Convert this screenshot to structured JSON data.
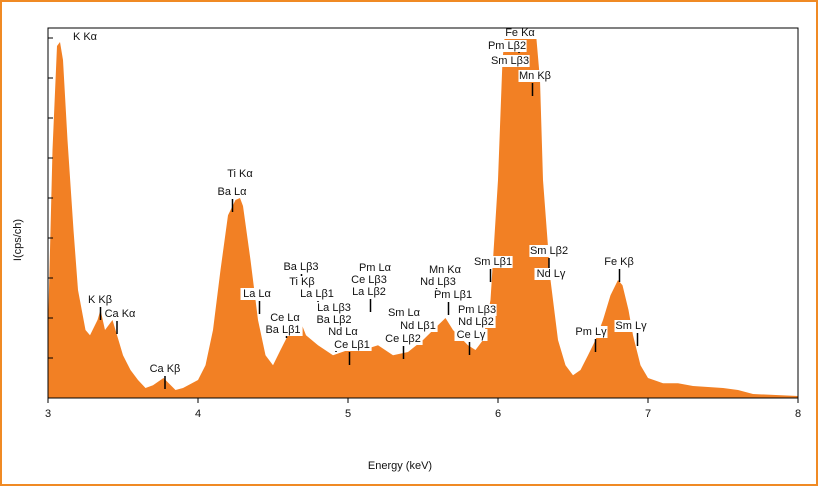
{
  "chart_data": {
    "type": "area",
    "xlabel": "Energy (keV)",
    "ylabel": "I(cps/ch)",
    "color": "#f28024",
    "xlim": [
      3,
      8
    ],
    "xticks": [
      3,
      4,
      5,
      6,
      7,
      8
    ],
    "ylim": [
      0,
      9.25
    ],
    "yticks": [
      1,
      2,
      3,
      4,
      5,
      6,
      7,
      8,
      9
    ],
    "x": [
      3.0,
      3.03,
      3.06,
      3.08,
      3.1,
      3.13,
      3.17,
      3.2,
      3.25,
      3.28,
      3.33,
      3.35,
      3.38,
      3.43,
      3.45,
      3.5,
      3.55,
      3.6,
      3.65,
      3.7,
      3.77,
      3.85,
      3.9,
      4.0,
      4.05,
      4.1,
      4.15,
      4.2,
      4.25,
      4.28,
      4.3,
      4.35,
      4.4,
      4.45,
      4.5,
      4.55,
      4.6,
      4.65,
      4.68,
      4.72,
      4.8,
      4.9,
      5.0,
      5.05,
      5.1,
      5.2,
      5.3,
      5.4,
      5.5,
      5.6,
      5.65,
      5.7,
      5.8,
      5.85,
      5.9,
      5.95,
      6.0,
      6.03,
      6.05,
      6.1,
      6.15,
      6.2,
      6.25,
      6.28,
      6.3,
      6.35,
      6.4,
      6.45,
      6.5,
      6.55,
      6.6,
      6.65,
      6.7,
      6.75,
      6.8,
      6.83,
      6.87,
      6.9,
      6.95,
      7.0,
      7.1,
      7.2,
      7.3,
      7.5,
      7.6,
      7.7,
      8.0
    ],
    "values": [
      1.7,
      6.2,
      8.8,
      8.9,
      8.45,
      6.45,
      4.2,
      2.7,
      1.7,
      1.57,
      1.95,
      2.2,
      1.7,
      1.95,
      1.7,
      1.07,
      0.7,
      0.45,
      0.25,
      0.32,
      0.5,
      0.2,
      0.25,
      0.45,
      0.82,
      1.7,
      3.2,
      4.57,
      4.95,
      5.0,
      4.8,
      3.45,
      1.95,
      1.07,
      0.82,
      1.2,
      1.57,
      1.7,
      1.95,
      1.57,
      1.32,
      1.07,
      1.2,
      1.45,
      1.2,
      1.32,
      1.07,
      1.15,
      1.45,
      1.82,
      2.0,
      1.7,
      1.32,
      1.2,
      1.45,
      2.45,
      5.45,
      8.45,
      9.25,
      9.25,
      9.2,
      9.25,
      9.25,
      7.95,
      5.45,
      2.95,
      1.45,
      0.82,
      0.57,
      0.7,
      1.07,
      1.45,
      1.95,
      2.57,
      2.95,
      2.82,
      2.2,
      1.57,
      0.82,
      0.5,
      0.37,
      0.37,
      0.3,
      0.25,
      0.2,
      0.1,
      0.05
    ],
    "annotations": [
      {
        "label": "K Kα",
        "x": 3.25
      },
      {
        "label": "K Kβ",
        "x": 3.35
      },
      {
        "label": "Ca Kα",
        "x": 3.46
      },
      {
        "label": "Ca Kβ",
        "x": 3.78
      },
      {
        "label": "Ti Kα",
        "x": 4.24
      },
      {
        "label": "Ba Lα",
        "x": 4.23
      },
      {
        "label": "La Lα",
        "x": 4.41
      },
      {
        "label": "Ce Lα",
        "x": 4.59
      },
      {
        "label": "Ba Lβ1",
        "x": 4.58
      },
      {
        "label": "Ba Lβ3",
        "x": 4.69
      },
      {
        "label": "Ti Kβ",
        "x": 4.69
      },
      {
        "label": "La Lβ1",
        "x": 4.8
      },
      {
        "label": "La Lβ3",
        "x": 4.83
      },
      {
        "label": "Ba Lβ2",
        "x": 4.84
      },
      {
        "label": "Nd Lα",
        "x": 4.92
      },
      {
        "label": "Ce Lβ1",
        "x": 5.01
      },
      {
        "label": "Pm Lα",
        "x": 5.13
      },
      {
        "label": "Ce Lβ3",
        "x": 5.12
      },
      {
        "label": "La Lβ2",
        "x": 5.15
      },
      {
        "label": "Sm Lα",
        "x": 5.37
      },
      {
        "label": "Nd Lβ1",
        "x": 5.47
      },
      {
        "label": "Ce Lβ2",
        "x": 5.37
      },
      {
        "label": "Mn Kα",
        "x": 5.59
      },
      {
        "label": "Nd Lβ3",
        "x": 5.59
      },
      {
        "label": "Pm Lβ1",
        "x": 5.67
      },
      {
        "label": "Pm Lβ3",
        "x": 5.82
      },
      {
        "label": "Nd Lβ2",
        "x": 5.83
      },
      {
        "label": "Ce Lγ",
        "x": 5.81
      },
      {
        "label": "Sm Lβ1",
        "x": 5.95
      },
      {
        "label": "Fe Kα",
        "x": 6.14
      },
      {
        "label": "Pm Lβ2",
        "x": 6.06
      },
      {
        "label": "Sm Lβ3",
        "x": 6.08
      },
      {
        "label": "Mn Kβ",
        "x": 6.23
      },
      {
        "label": "Sm Lβ2",
        "x": 6.34
      },
      {
        "label": "Nd Lγ",
        "x": 6.35
      },
      {
        "label": "Pm Lγ",
        "x": 6.65
      },
      {
        "label": "Fe Kβ",
        "x": 6.81
      },
      {
        "label": "Sm Lγ",
        "x": 6.93
      }
    ]
  }
}
